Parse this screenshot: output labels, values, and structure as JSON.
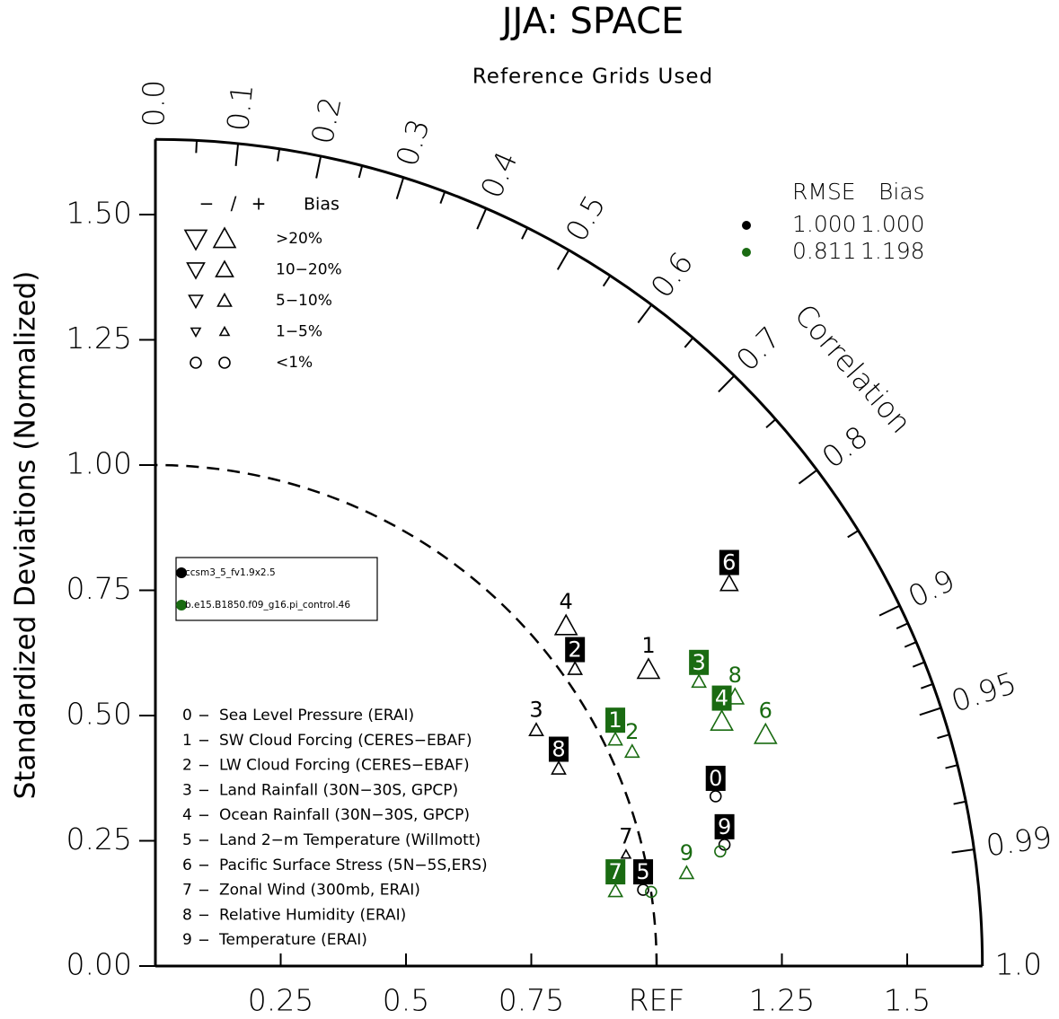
{
  "chart_data": {
    "type": "taylor",
    "title": "JJA: SPACE",
    "subtitle": "Reference Grids Used",
    "ylabel": "Standardized Deviations (Normalized)",
    "corr_label": "Correlation",
    "xlim": [
      0,
      1.65
    ],
    "ylim": [
      0,
      1.65
    ],
    "reference_radius": 1,
    "xticks": [
      0.25,
      0.5,
      0.75,
      {
        "value": 1,
        "label": "REF"
      },
      1.25,
      1.5
    ],
    "yticks": [
      {
        "value": 0,
        "label": "0.00"
      },
      0.25,
      {
        "value": 0.5,
        "label": "0.50"
      },
      0.75,
      {
        "value": 1,
        "label": "1.00"
      },
      1.25,
      {
        "value": 1.5,
        "label": "1.50"
      }
    ],
    "corr_ticks": [
      {
        "value": 0,
        "label": "0.0"
      },
      0.1,
      0.2,
      0.3,
      0.4,
      0.5,
      0.6,
      0.7,
      0.8,
      0.9,
      0.95,
      0.99,
      {
        "value": 1,
        "label": "1.0"
      }
    ],
    "corr_minor_ticks": [
      0.05,
      0.15,
      0.25,
      0.35,
      0.45,
      0.55,
      0.65,
      0.75,
      0.85,
      0.91,
      0.92,
      0.93,
      0.94,
      0.96,
      0.97,
      0.98
    ],
    "bias_legend": {
      "minus": "−",
      "slash": "/",
      "plus": "+",
      "title": "Bias",
      "rows": [
        ">20%",
        "10−20%",
        "5−10%",
        "1−5%",
        "<1%"
      ]
    },
    "stats_header": [
      "RMSE",
      "Bias"
    ],
    "variables": [
      {
        "id": "0",
        "label": "Sea Level Pressure (ERAI)"
      },
      {
        "id": "1",
        "label": "SW Cloud Forcing (CERES−EBAF)"
      },
      {
        "id": "2",
        "label": "LW Cloud Forcing (CERES−EBAF)"
      },
      {
        "id": "3",
        "label": "Land Rainfall (30N−30S, GPCP)"
      },
      {
        "id": "4",
        "label": "Ocean Rainfall (30N−30S, GPCP)"
      },
      {
        "id": "5",
        "label": "Land 2−m Temperature (Willmott)"
      },
      {
        "id": "6",
        "label": "Pacific Surface Stress (5N−5S,ERS)"
      },
      {
        "id": "7",
        "label": "Zonal Wind (300mb, ERAI)"
      },
      {
        "id": "8",
        "label": "Relative Humidity (ERAI)"
      },
      {
        "id": "9",
        "label": "Temperature (ERAI)"
      }
    ],
    "series": [
      {
        "name": "ccsm3_5_fv1.9x2.5",
        "color": "#000000",
        "rmse": "1.000",
        "bias": "1.000",
        "points": [
          {
            "ratio": 1.168,
            "correlation": 0.957,
            "bias_class": 4,
            "label_style": "box"
          },
          {
            "ratio": 1.148,
            "correlation": 0.857,
            "bias_class": 0,
            "label_style": "plain"
          },
          {
            "ratio": 1.026,
            "correlation": 0.816,
            "bias_class": 2,
            "label_style": "box"
          },
          {
            "ratio": 0.894,
            "correlation": 0.85,
            "bias_class": 2,
            "label_style": "plain"
          },
          {
            "ratio": 1.064,
            "correlation": 0.77,
            "bias_class": 0,
            "label_style": "plain"
          },
          {
            "ratio": 0.985,
            "correlation": 0.988,
            "bias_class": 4,
            "label_style": "box"
          },
          {
            "ratio": 1.376,
            "correlation": 0.832,
            "bias_class": 1,
            "label_style": "box"
          },
          {
            "ratio": 0.965,
            "correlation": 0.973,
            "bias_class": 3,
            "label_style": "plain"
          },
          {
            "ratio": 0.896,
            "correlation": 0.898,
            "bias_class": 2,
            "label_style": "box"
          },
          {
            "ratio": 1.161,
            "correlation": 0.978,
            "bias_class": 4,
            "label_style": "box"
          }
        ]
      },
      {
        "name": "b.e15.B1850.f09_g16.pi_control.46",
        "color": "#1a6b12",
        "rmse": "0.811",
        "bias": "1.198",
        "points": [
          {
            "ratio": 1.15,
            "correlation": 0.98,
            "bias_class": 4,
            "label_style": "none"
          },
          {
            "ratio": 1.023,
            "correlation": 0.897,
            "bias_class": 2,
            "label_style": "box"
          },
          {
            "ratio": 1.043,
            "correlation": 0.912,
            "bias_class": 2,
            "label_style": "plain"
          },
          {
            "ratio": 1.224,
            "correlation": 0.886,
            "bias_class": 2,
            "label_style": "box"
          },
          {
            "ratio": 1.231,
            "correlation": 0.918,
            "bias_class": 0,
            "label_style": "box"
          },
          {
            "ratio": 1.0,
            "correlation": 0.989,
            "bias_class": 4,
            "label_style": "none"
          },
          {
            "ratio": 1.302,
            "correlation": 0.935,
            "bias_class": 0,
            "label_style": "plain"
          },
          {
            "ratio": 0.93,
            "correlation": 0.987,
            "bias_class": 2,
            "label_style": "box"
          },
          {
            "ratio": 1.275,
            "correlation": 0.907,
            "bias_class": 1,
            "label_style": "plain"
          },
          {
            "ratio": 1.076,
            "correlation": 0.985,
            "bias_class": 2,
            "label_style": "plain"
          }
        ]
      }
    ]
  }
}
